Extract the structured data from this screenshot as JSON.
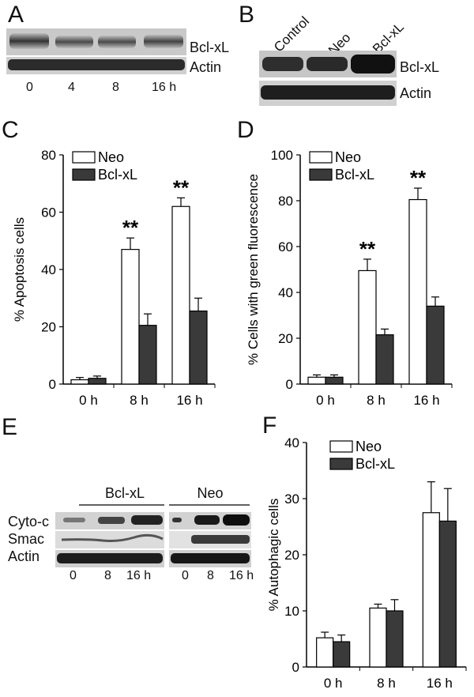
{
  "panels": {
    "A": {
      "letter": "A",
      "labels": [
        "Bcl-xL",
        "Actin"
      ],
      "lanes": [
        "0",
        "4",
        "8",
        "16 h"
      ]
    },
    "B": {
      "letter": "B",
      "labels": [
        "Bcl-xL",
        "Actin"
      ],
      "lanes": [
        "Control",
        "Neo",
        "Bcl-xL"
      ]
    },
    "C": {
      "letter": "C"
    },
    "D": {
      "letter": "D"
    },
    "E": {
      "letter": "E",
      "groups": [
        "Bcl-xL",
        "Neo"
      ],
      "labels": [
        "Cyto-c",
        "Smac",
        "Actin"
      ],
      "lanes_left": [
        "0",
        "8",
        "16 h"
      ],
      "lanes_right": [
        "0",
        "8",
        "16 h"
      ]
    },
    "F": {
      "letter": "F"
    }
  },
  "colors": {
    "neo": "#ffffff",
    "bclxl": "#3a3a3a",
    "axis": "#000000"
  },
  "chart_data": [
    {
      "id": "C",
      "type": "bar",
      "categories": [
        "0 h",
        "8 h",
        "16 h"
      ],
      "series": [
        {
          "name": "Neo",
          "values": [
            1.5,
            47,
            62
          ],
          "errors": [
            0.8,
            4,
            3
          ]
        },
        {
          "name": "Bcl-xL",
          "values": [
            2,
            20.5,
            25.5
          ],
          "errors": [
            0.8,
            4,
            4.5
          ]
        }
      ],
      "ylabel": "% Apoptosis cells",
      "ylim": [
        0,
        80
      ],
      "yticks": [
        0,
        20,
        40,
        60,
        80
      ],
      "annotations": [
        "",
        "**",
        "**"
      ],
      "legend": "top-left"
    },
    {
      "id": "D",
      "type": "bar",
      "categories": [
        "0 h",
        "8 h",
        "16 h"
      ],
      "series": [
        {
          "name": "Neo",
          "values": [
            3,
            49.5,
            80.5
          ],
          "errors": [
            1,
            5,
            5
          ]
        },
        {
          "name": "Bcl-xL",
          "values": [
            3,
            21.5,
            34
          ],
          "errors": [
            1,
            2.5,
            4
          ]
        }
      ],
      "ylabel": "% Cells with green fluorescence",
      "ylim": [
        0,
        100
      ],
      "yticks": [
        0,
        20,
        40,
        60,
        80,
        100
      ],
      "annotations": [
        "",
        "**",
        "**"
      ],
      "legend": "top-left"
    },
    {
      "id": "F",
      "type": "bar",
      "categories": [
        "0 h",
        "8 h",
        "16 h"
      ],
      "series": [
        {
          "name": "Neo",
          "values": [
            5.2,
            10.5,
            27.5
          ],
          "errors": [
            1,
            0.7,
            5.5
          ]
        },
        {
          "name": "Bcl-xL",
          "values": [
            4.5,
            10,
            26
          ],
          "errors": [
            1.2,
            2,
            5.8
          ]
        }
      ],
      "ylabel": "% Autophagic cells",
      "ylim": [
        0,
        40
      ],
      "yticks": [
        0,
        10,
        20,
        30,
        40
      ],
      "annotations": [
        "",
        "",
        ""
      ],
      "legend": "top-left"
    }
  ]
}
